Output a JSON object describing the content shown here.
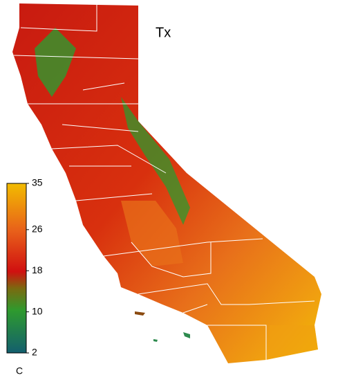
{
  "title": "Tx",
  "colorbar": {
    "unit": "C",
    "range": [
      2,
      35
    ],
    "ticks": [
      2,
      10,
      18,
      26,
      35
    ]
  }
}
